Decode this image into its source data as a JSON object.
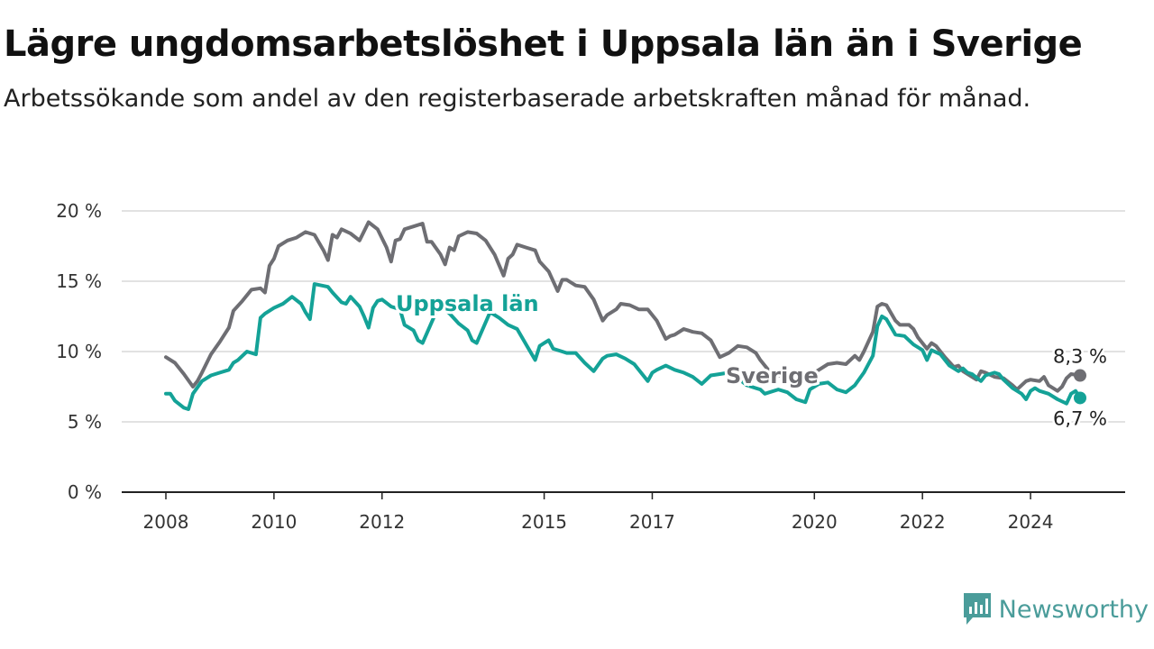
{
  "header": {
    "title": "Lägre ungdomsarbetslöshet i Uppsala län än i Sverige",
    "subtitle": "Arbetssökande som andel av den registerbaserade arbetskraften månad för månad."
  },
  "brand": {
    "name": "Newsworthy",
    "icon": "newsworthy-logo-icon",
    "color": "#4a9c9a"
  },
  "chart_data": {
    "type": "line",
    "x_start": "2008-01",
    "x_end": "2024-12",
    "ylim": [
      0,
      20
    ],
    "grid": true,
    "x_ticks": [
      {
        "label": "2008",
        "date": "2008-01"
      },
      {
        "label": "2010",
        "date": "2010-01"
      },
      {
        "label": "2012",
        "date": "2012-01"
      },
      {
        "label": "2015",
        "date": "2015-01"
      },
      {
        "label": "2017",
        "date": "2017-01"
      },
      {
        "label": "2020",
        "date": "2020-01"
      },
      {
        "label": "2022",
        "date": "2022-01"
      },
      {
        "label": "2024",
        "date": "2024-01"
      }
    ],
    "y_ticks": [
      {
        "value": 0,
        "label": "0 %"
      },
      {
        "value": 5,
        "label": "5 %"
      },
      {
        "value": 10,
        "label": "10 %"
      },
      {
        "value": 15,
        "label": "15 %"
      },
      {
        "value": 20,
        "label": "20 %"
      }
    ],
    "series": [
      {
        "name": "Sverige",
        "color": "#6e6e73",
        "label": "Sverige",
        "end_label": "8,3 %",
        "end_value": 8.3,
        "points": [
          [
            "2008-01",
            9.6
          ],
          [
            "2008-03",
            9.2
          ],
          [
            "2008-05",
            8.4
          ],
          [
            "2008-07",
            7.5
          ],
          [
            "2008-08",
            7.9
          ],
          [
            "2008-09",
            8.5
          ],
          [
            "2008-11",
            9.8
          ],
          [
            "2009-01",
            10.7
          ],
          [
            "2009-03",
            11.7
          ],
          [
            "2009-04",
            12.9
          ],
          [
            "2009-06",
            13.6
          ],
          [
            "2009-08",
            14.4
          ],
          [
            "2009-10",
            14.5
          ],
          [
            "2009-11",
            14.2
          ],
          [
            "2009-12",
            16.1
          ],
          [
            "2010-01",
            16.6
          ],
          [
            "2010-02",
            17.5
          ],
          [
            "2010-04",
            17.9
          ],
          [
            "2010-06",
            18.1
          ],
          [
            "2010-08",
            18.5
          ],
          [
            "2010-10",
            18.3
          ],
          [
            "2010-12",
            17.2
          ],
          [
            "2011-01",
            16.5
          ],
          [
            "2011-02",
            18.3
          ],
          [
            "2011-03",
            18.1
          ],
          [
            "2011-04",
            18.7
          ],
          [
            "2011-06",
            18.4
          ],
          [
            "2011-08",
            17.9
          ],
          [
            "2011-10",
            19.2
          ],
          [
            "2011-12",
            18.7
          ],
          [
            "2012-02",
            17.4
          ],
          [
            "2012-03",
            16.4
          ],
          [
            "2012-04",
            17.9
          ],
          [
            "2012-05",
            18.0
          ],
          [
            "2012-06",
            18.7
          ],
          [
            "2012-08",
            18.9
          ],
          [
            "2012-10",
            19.1
          ],
          [
            "2012-11",
            17.8
          ],
          [
            "2012-12",
            17.8
          ],
          [
            "2013-02",
            16.9
          ],
          [
            "2013-03",
            16.2
          ],
          [
            "2013-04",
            17.4
          ],
          [
            "2013-05",
            17.2
          ],
          [
            "2013-06",
            18.2
          ],
          [
            "2013-08",
            18.5
          ],
          [
            "2013-10",
            18.4
          ],
          [
            "2013-12",
            17.9
          ],
          [
            "2014-02",
            16.9
          ],
          [
            "2014-04",
            15.4
          ],
          [
            "2014-05",
            16.6
          ],
          [
            "2014-06",
            16.9
          ],
          [
            "2014-07",
            17.6
          ],
          [
            "2014-09",
            17.4
          ],
          [
            "2014-11",
            17.2
          ],
          [
            "2014-12",
            16.4
          ],
          [
            "2015-02",
            15.7
          ],
          [
            "2015-04",
            14.3
          ],
          [
            "2015-05",
            15.1
          ],
          [
            "2015-06",
            15.1
          ],
          [
            "2015-08",
            14.7
          ],
          [
            "2015-10",
            14.6
          ],
          [
            "2015-12",
            13.7
          ],
          [
            "2016-02",
            12.2
          ],
          [
            "2016-03",
            12.6
          ],
          [
            "2016-05",
            13.0
          ],
          [
            "2016-06",
            13.4
          ],
          [
            "2016-08",
            13.3
          ],
          [
            "2016-10",
            13.0
          ],
          [
            "2016-12",
            13.0
          ],
          [
            "2017-02",
            12.2
          ],
          [
            "2017-04",
            10.9
          ],
          [
            "2017-05",
            11.1
          ],
          [
            "2017-06",
            11.2
          ],
          [
            "2017-08",
            11.6
          ],
          [
            "2017-10",
            11.4
          ],
          [
            "2017-12",
            11.3
          ],
          [
            "2018-02",
            10.8
          ],
          [
            "2018-04",
            9.6
          ],
          [
            "2018-06",
            9.9
          ],
          [
            "2018-08",
            10.4
          ],
          [
            "2018-10",
            10.3
          ],
          [
            "2018-12",
            9.9
          ],
          [
            "2019-01",
            9.4
          ],
          [
            "2019-03",
            8.6
          ],
          [
            "2019-06",
            8.2
          ],
          [
            "2019-08",
            8.0
          ],
          [
            "2019-10",
            7.9
          ],
          [
            "2019-12",
            8.3
          ],
          [
            "2020-02",
            8.7
          ],
          [
            "2020-04",
            9.1
          ],
          [
            "2020-06",
            9.2
          ],
          [
            "2020-08",
            9.1
          ],
          [
            "2020-10",
            9.7
          ],
          [
            "2020-11",
            9.4
          ],
          [
            "2020-12",
            10.0
          ],
          [
            "2021-02",
            11.4
          ],
          [
            "2021-03",
            13.2
          ],
          [
            "2021-04",
            13.4
          ],
          [
            "2021-05",
            13.3
          ],
          [
            "2021-07",
            12.2
          ],
          [
            "2021-08",
            11.9
          ],
          [
            "2021-10",
            11.9
          ],
          [
            "2021-11",
            11.6
          ],
          [
            "2021-12",
            11.0
          ],
          [
            "2022-02",
            10.2
          ],
          [
            "2022-03",
            10.6
          ],
          [
            "2022-04",
            10.4
          ],
          [
            "2022-06",
            9.6
          ],
          [
            "2022-08",
            8.9
          ],
          [
            "2022-09",
            9.0
          ],
          [
            "2022-10",
            8.6
          ],
          [
            "2022-12",
            8.2
          ],
          [
            "2023-01",
            8.0
          ],
          [
            "2023-02",
            8.6
          ],
          [
            "2023-03",
            8.5
          ],
          [
            "2023-05",
            8.2
          ],
          [
            "2023-07",
            8.1
          ],
          [
            "2023-09",
            7.6
          ],
          [
            "2023-10",
            7.3
          ],
          [
            "2023-11",
            7.6
          ],
          [
            "2023-12",
            7.9
          ],
          [
            "2024-01",
            8.0
          ],
          [
            "2024-03",
            7.9
          ],
          [
            "2024-04",
            8.2
          ],
          [
            "2024-05",
            7.6
          ],
          [
            "2024-07",
            7.2
          ],
          [
            "2024-08",
            7.5
          ],
          [
            "2024-09",
            8.1
          ],
          [
            "2024-10",
            8.4
          ],
          [
            "2024-12",
            8.3
          ]
        ]
      },
      {
        "name": "Uppsala län",
        "color": "#14a297",
        "label": "Uppsala län",
        "end_label": "6,7 %",
        "end_value": 6.7,
        "points": [
          [
            "2008-01",
            7.0
          ],
          [
            "2008-02",
            7.0
          ],
          [
            "2008-03",
            6.5
          ],
          [
            "2008-05",
            6.0
          ],
          [
            "2008-06",
            5.9
          ],
          [
            "2008-07",
            7.0
          ],
          [
            "2008-09",
            7.9
          ],
          [
            "2008-11",
            8.3
          ],
          [
            "2009-01",
            8.5
          ],
          [
            "2009-03",
            8.7
          ],
          [
            "2009-04",
            9.2
          ],
          [
            "2009-05",
            9.4
          ],
          [
            "2009-07",
            10.0
          ],
          [
            "2009-09",
            9.8
          ],
          [
            "2009-10",
            12.4
          ],
          [
            "2009-11",
            12.7
          ],
          [
            "2010-01",
            13.1
          ],
          [
            "2010-03",
            13.4
          ],
          [
            "2010-05",
            13.9
          ],
          [
            "2010-07",
            13.4
          ],
          [
            "2010-08",
            12.8
          ],
          [
            "2010-09",
            12.3
          ],
          [
            "2010-10",
            14.8
          ],
          [
            "2011-01",
            14.6
          ],
          [
            "2011-02",
            14.2
          ],
          [
            "2011-04",
            13.5
          ],
          [
            "2011-05",
            13.4
          ],
          [
            "2011-06",
            13.9
          ],
          [
            "2011-08",
            13.2
          ],
          [
            "2011-09",
            12.5
          ],
          [
            "2011-10",
            11.7
          ],
          [
            "2011-11",
            13.1
          ],
          [
            "2011-12",
            13.6
          ],
          [
            "2012-01",
            13.7
          ],
          [
            "2012-03",
            13.2
          ],
          [
            "2012-05",
            13.0
          ],
          [
            "2012-06",
            11.9
          ],
          [
            "2012-08",
            11.5
          ],
          [
            "2012-09",
            10.8
          ],
          [
            "2012-10",
            10.6
          ],
          [
            "2013-01",
            12.8
          ],
          [
            "2013-02",
            13.2
          ],
          [
            "2013-03",
            13.0
          ],
          [
            "2013-04",
            12.7
          ],
          [
            "2013-06",
            12.0
          ],
          [
            "2013-08",
            11.5
          ],
          [
            "2013-09",
            10.8
          ],
          [
            "2013-10",
            10.6
          ],
          [
            "2014-01",
            12.8
          ],
          [
            "2014-03",
            12.4
          ],
          [
            "2014-05",
            11.9
          ],
          [
            "2014-07",
            11.6
          ],
          [
            "2014-09",
            10.5
          ],
          [
            "2014-11",
            9.4
          ],
          [
            "2014-12",
            10.4
          ],
          [
            "2015-01",
            10.6
          ],
          [
            "2015-02",
            10.8
          ],
          [
            "2015-03",
            10.2
          ],
          [
            "2015-05",
            10.0
          ],
          [
            "2015-06",
            9.9
          ],
          [
            "2015-08",
            9.9
          ],
          [
            "2015-10",
            9.2
          ],
          [
            "2015-12",
            8.6
          ],
          [
            "2016-02",
            9.5
          ],
          [
            "2016-03",
            9.7
          ],
          [
            "2016-05",
            9.8
          ],
          [
            "2016-07",
            9.5
          ],
          [
            "2016-09",
            9.1
          ],
          [
            "2016-11",
            8.3
          ],
          [
            "2016-12",
            7.9
          ],
          [
            "2017-01",
            8.5
          ],
          [
            "2017-02",
            8.7
          ],
          [
            "2017-04",
            9.0
          ],
          [
            "2017-06",
            8.7
          ],
          [
            "2017-08",
            8.5
          ],
          [
            "2017-10",
            8.2
          ],
          [
            "2017-12",
            7.7
          ],
          [
            "2018-02",
            8.3
          ],
          [
            "2018-04",
            8.4
          ],
          [
            "2018-06",
            8.5
          ],
          [
            "2018-08",
            8.1
          ],
          [
            "2018-10",
            7.6
          ],
          [
            "2018-12",
            7.4
          ],
          [
            "2019-01",
            7.3
          ],
          [
            "2019-02",
            7.0
          ],
          [
            "2019-05",
            7.3
          ],
          [
            "2019-07",
            7.1
          ],
          [
            "2019-09",
            6.6
          ],
          [
            "2019-11",
            6.4
          ],
          [
            "2019-12",
            7.3
          ],
          [
            "2020-02",
            7.7
          ],
          [
            "2020-04",
            7.8
          ],
          [
            "2020-06",
            7.3
          ],
          [
            "2020-08",
            7.1
          ],
          [
            "2020-10",
            7.6
          ],
          [
            "2020-12",
            8.5
          ],
          [
            "2021-02",
            9.7
          ],
          [
            "2021-03",
            11.8
          ],
          [
            "2021-04",
            12.5
          ],
          [
            "2021-05",
            12.3
          ],
          [
            "2021-07",
            11.2
          ],
          [
            "2021-09",
            11.1
          ],
          [
            "2021-11",
            10.5
          ],
          [
            "2022-01",
            10.1
          ],
          [
            "2022-02",
            9.4
          ],
          [
            "2022-03",
            10.1
          ],
          [
            "2022-05",
            9.8
          ],
          [
            "2022-07",
            9.0
          ],
          [
            "2022-09",
            8.6
          ],
          [
            "2022-10",
            8.8
          ],
          [
            "2022-11",
            8.5
          ],
          [
            "2022-12",
            8.4
          ],
          [
            "2023-02",
            7.9
          ],
          [
            "2023-03",
            8.3
          ],
          [
            "2023-05",
            8.5
          ],
          [
            "2023-06",
            8.4
          ],
          [
            "2023-07",
            8.0
          ],
          [
            "2023-09",
            7.4
          ],
          [
            "2023-11",
            7.0
          ],
          [
            "2023-12",
            6.6
          ],
          [
            "2024-01",
            7.2
          ],
          [
            "2024-02",
            7.4
          ],
          [
            "2024-03",
            7.2
          ],
          [
            "2024-05",
            7.0
          ],
          [
            "2024-07",
            6.6
          ],
          [
            "2024-09",
            6.3
          ],
          [
            "2024-10",
            7.0
          ],
          [
            "2024-11",
            7.2
          ],
          [
            "2024-12",
            6.7
          ]
        ]
      }
    ]
  }
}
